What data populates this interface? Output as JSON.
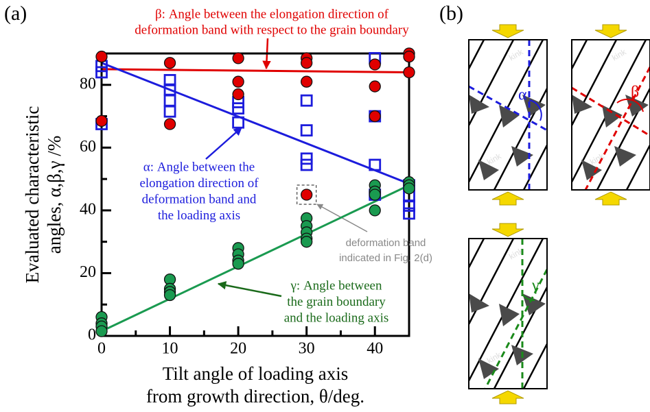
{
  "chart_data": {
    "type": "scatter",
    "panel_label": "(a)",
    "xlabel": [
      "Tilt angle of loading axis",
      "from growth direction, θ/deg."
    ],
    "ylabel": [
      "Evaluated characteristic",
      "angles, α,β,γ /%"
    ],
    "xlim": [
      0,
      45
    ],
    "ylim": [
      0,
      90
    ],
    "xticks": [
      0,
      10,
      20,
      30,
      40
    ],
    "xminorticks": [
      5,
      15,
      25,
      35
    ],
    "yticks": [
      0,
      20,
      40,
      60,
      80
    ],
    "yminorticks": [
      10,
      30,
      50,
      70
    ],
    "series": [
      {
        "marker": "circle",
        "color": "#e00000",
        "x": [
          0,
          0,
          10,
          10,
          20,
          20,
          20,
          30,
          30,
          30,
          30,
          40,
          40,
          40,
          40,
          45,
          45,
          45
        ],
        "values": [
          89,
          68.5,
          87,
          67.5,
          88.5,
          81,
          77,
          88.5,
          87,
          81,
          45,
          86.5,
          79.5,
          70,
          45.5,
          90,
          89,
          84
        ],
        "fit": {
          "x": [
            0,
            45
          ],
          "values": [
            85,
            84
          ]
        }
      },
      {
        "marker": "square",
        "color": "#1c1cdc",
        "x": [
          0,
          0,
          0,
          10,
          10,
          10,
          10,
          20,
          20,
          20,
          30,
          30,
          30,
          30,
          40,
          40,
          40,
          40,
          45,
          45,
          45,
          45
        ],
        "values": [
          86,
          84,
          67.5,
          81.5,
          78.5,
          75,
          71.5,
          74.5,
          72.5,
          68,
          75,
          65.5,
          56.5,
          54.5,
          88.5,
          70,
          54.5,
          45,
          48,
          44.5,
          41.5,
          39
        ],
        "fit": {
          "x": [
            0,
            45
          ],
          "values": [
            87,
            48.5
          ]
        }
      },
      {
        "marker": "circle",
        "color": "#1a9a50",
        "x": [
          0,
          0,
          0,
          0,
          10,
          10,
          10,
          10,
          20,
          20,
          20,
          20,
          30,
          30,
          30,
          30,
          30,
          40,
          40,
          40,
          40,
          45,
          45,
          45
        ],
        "values": [
          6,
          4,
          3,
          1.5,
          18,
          15,
          14,
          13,
          28,
          26,
          24,
          23,
          37.5,
          35,
          33,
          31,
          30,
          48,
          46,
          45,
          40,
          49,
          48,
          47
        ],
        "fit": {
          "x": [
            0,
            45
          ],
          "values": [
            1.5,
            48
          ]
        }
      }
    ],
    "annotations": [
      {
        "color": "#e00000",
        "lines": [
          "β: Angle  between the elongation direction of",
          "deformation band with respect to the grain boundary"
        ]
      },
      {
        "color": "#1c1cdc",
        "lines": [
          "α: Angle between the",
          "elongation direction of",
          "deformation band and",
          "the loading axis"
        ]
      },
      {
        "color": "#1a6a1a",
        "lines": [
          "γ: Angle  between",
          "the grain boundary",
          "and the loading axis"
        ]
      }
    ],
    "highlight": {
      "x": 30,
      "y": 45,
      "lines": [
        "deformation band",
        "indicated in Fig. 2(d)"
      ]
    }
  },
  "diagram": {
    "label": "(b)",
    "panels": [
      {
        "angle": "α",
        "color": "#1c1cdc",
        "kinks": [
          "kink",
          "kink"
        ]
      },
      {
        "angle": "β",
        "color": "#e00000",
        "kinks": [
          "kink",
          "kink"
        ]
      },
      {
        "angle": "γ",
        "color": "#1a8a1a",
        "kinks": [
          "kink",
          "kink"
        ]
      }
    ]
  }
}
